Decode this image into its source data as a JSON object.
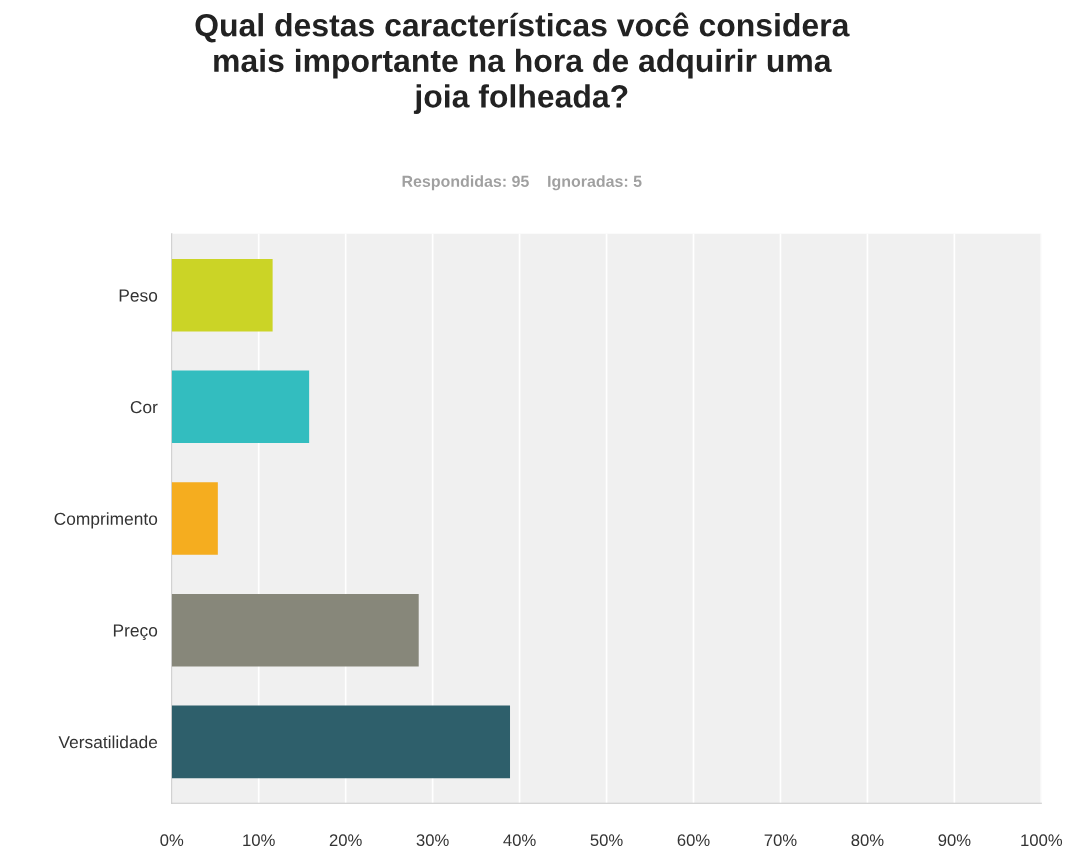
{
  "chart_data": {
    "type": "bar",
    "orientation": "horizontal",
    "title": "Qual destas características você considera\nmais importante na hora de adquirir uma\njoia folheada?",
    "subtitle": "Respondidas: 95    Ignoradas: 5",
    "categories": [
      "Peso",
      "Cor",
      "Comprimento",
      "Preço",
      "Versatilidade"
    ],
    "values": [
      11.6,
      15.8,
      5.3,
      28.4,
      38.9
    ],
    "colors": [
      "#cbd426",
      "#33bdbf",
      "#f5ad1f",
      "#87877a",
      "#2e5f6b"
    ],
    "xlim": [
      0,
      100
    ],
    "xticks": [
      {
        "value": 0,
        "label": "0%"
      },
      {
        "value": 10,
        "label": "10%"
      },
      {
        "value": 20,
        "label": "20%"
      },
      {
        "value": 30,
        "label": "30%"
      },
      {
        "value": 40,
        "label": "40%"
      },
      {
        "value": 50,
        "label": "50%"
      },
      {
        "value": 60,
        "label": "60%"
      },
      {
        "value": 70,
        "label": "70%"
      },
      {
        "value": 80,
        "label": "80%"
      },
      {
        "value": 90,
        "label": "90%"
      },
      {
        "value": 100,
        "label": "100%"
      }
    ],
    "grid": "x",
    "legend": false
  }
}
